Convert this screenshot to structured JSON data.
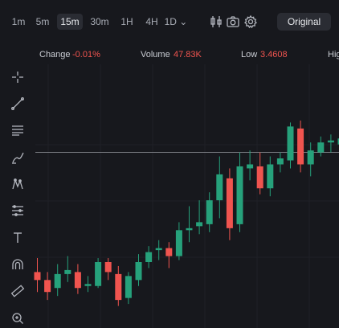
{
  "timeframes": [
    {
      "label": "1m",
      "active": false
    },
    {
      "label": "5m",
      "active": false
    },
    {
      "label": "15m",
      "active": true
    },
    {
      "label": "30m",
      "active": false
    },
    {
      "label": "1H",
      "active": false
    },
    {
      "label": "4H",
      "active": false
    },
    {
      "label": "1D ⌄",
      "active": false
    }
  ],
  "header_tools": [
    "indicators-icon",
    "camera-icon",
    "gear-icon"
  ],
  "view_button": "Original",
  "stats": {
    "change_label": "Change",
    "change_value": "-0.01%",
    "volume_label": "Volume",
    "volume_value": "47.83K",
    "low_label": "Low",
    "low_value": "3.4608",
    "high_label": "Hig"
  },
  "left_tools": [
    "crosshair-icon",
    "trend-line-icon",
    "horizontal-lines-icon",
    "brush-icon",
    "pattern-icon",
    "measure-lines-icon",
    "text-icon",
    "magnet-icon",
    "ruler-icon",
    "zoom-in-icon"
  ],
  "colors": {
    "up": "#26a17b",
    "down": "#f0544f",
    "accent_red": "#f0544f"
  },
  "chart_data": {
    "type": "candlestick",
    "title": "",
    "y_range": [
      0,
      100
    ],
    "price_line": 80,
    "candles": [
      {
        "o": 20,
        "c": 16,
        "h": 27,
        "l": 10
      },
      {
        "o": 16,
        "c": 10,
        "h": 20,
        "l": 6
      },
      {
        "o": 12,
        "c": 19,
        "h": 24,
        "l": 8
      },
      {
        "o": 19,
        "c": 21,
        "h": 28,
        "l": 15
      },
      {
        "o": 20,
        "c": 12,
        "h": 24,
        "l": 9
      },
      {
        "o": 13,
        "c": 14,
        "h": 18,
        "l": 10
      },
      {
        "o": 13,
        "c": 25,
        "h": 27,
        "l": 12
      },
      {
        "o": 25,
        "c": 20,
        "h": 27,
        "l": 16
      },
      {
        "o": 19,
        "c": 6,
        "h": 23,
        "l": 3
      },
      {
        "o": 7,
        "c": 18,
        "h": 20,
        "l": 4
      },
      {
        "o": 16,
        "c": 25,
        "h": 29,
        "l": 13
      },
      {
        "o": 25,
        "c": 30,
        "h": 33,
        "l": 22
      },
      {
        "o": 31,
        "c": 32,
        "h": 36,
        "l": 26
      },
      {
        "o": 32,
        "c": 28,
        "h": 35,
        "l": 22
      },
      {
        "o": 28,
        "c": 41,
        "h": 45,
        "l": 26
      },
      {
        "o": 41,
        "c": 42,
        "h": 53,
        "l": 35
      },
      {
        "o": 43,
        "c": 45,
        "h": 56,
        "l": 39
      },
      {
        "o": 44,
        "c": 56,
        "h": 60,
        "l": 40
      },
      {
        "o": 56,
        "c": 69,
        "h": 78,
        "l": 47
      },
      {
        "o": 67,
        "c": 42,
        "h": 72,
        "l": 36
      },
      {
        "o": 44,
        "c": 73,
        "h": 80,
        "l": 40
      },
      {
        "o": 72,
        "c": 74,
        "h": 81,
        "l": 66
      },
      {
        "o": 73,
        "c": 62,
        "h": 80,
        "l": 59
      },
      {
        "o": 62,
        "c": 74,
        "h": 78,
        "l": 58
      },
      {
        "o": 74,
        "c": 77,
        "h": 80,
        "l": 70
      },
      {
        "o": 76,
        "c": 93,
        "h": 95,
        "l": 72
      },
      {
        "o": 92,
        "c": 74,
        "h": 96,
        "l": 70
      },
      {
        "o": 74,
        "c": 81,
        "h": 85,
        "l": 68
      },
      {
        "o": 80,
        "c": 85,
        "h": 88,
        "l": 78
      },
      {
        "o": 85,
        "c": 86,
        "h": 89,
        "l": 80
      },
      {
        "o": 84,
        "c": 87,
        "h": 89,
        "l": 82
      }
    ]
  }
}
